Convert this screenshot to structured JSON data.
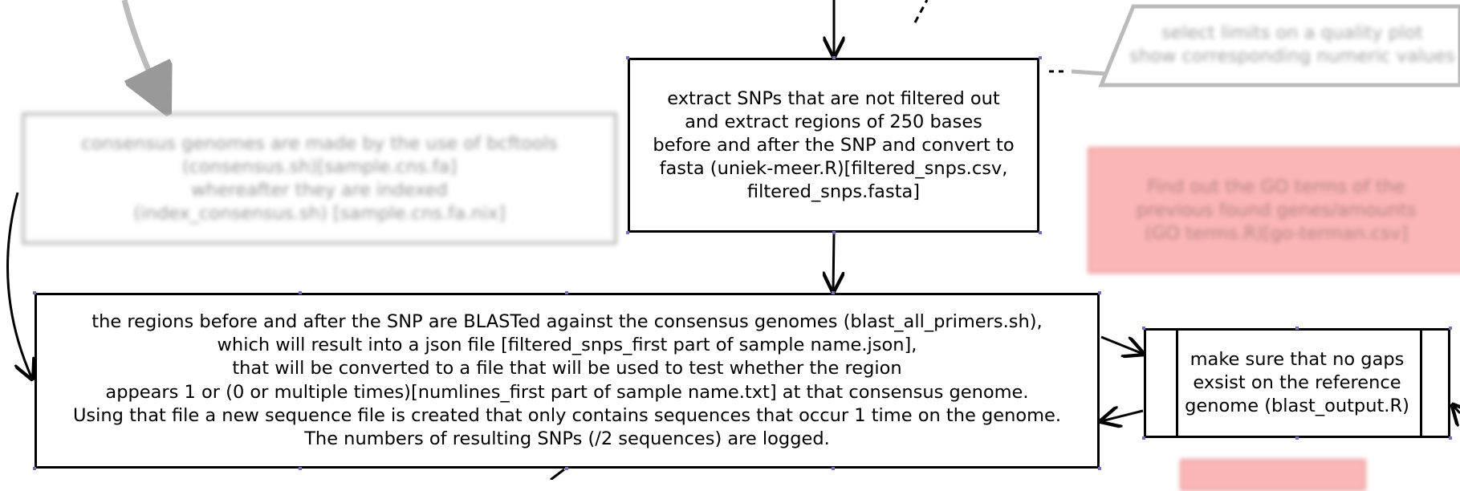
{
  "nodes": {
    "consensus": {
      "text": "consensus genomes are made by the use of bcftools\n(consensus.sh)[sample.cns.fa]\nwhereafter they are indexed\n(index_consensus.sh) [sample.cns.fa.nix]"
    },
    "extract": {
      "text": "extract SNPs that are not filtered out\nand extract regions of 250 bases\nbefore and after the SNP and convert to\nfasta (uniek-meer.R)[filtered_snps.csv,\nfiltered_snps.fasta]"
    },
    "blast": {
      "text": "the regions before and after the SNP are BLASTed against the consensus genomes (blast_all_primers.sh),\nwhich will result into a json file [filtered_snps_first part of sample name.json],\nthat will be converted to a file that will be used to test whether the region\nappears 1 or (0 or multiple times)[numlines_first part of sample name.txt] at that consensus genome.\nUsing that file a new sequence file is created that only contains sequences that occur 1 time on the genome.\nThe numbers of resulting SNPs (/2 sequences) are logged."
    },
    "gaps": {
      "text": "make sure that no gaps\nexsist on the reference\ngenome (blast_output.R)"
    },
    "goterms": {
      "text": "Find out the GO terms of the\nprevious found genes/amounts\n(GO terms.R)[go-terman.csv]"
    },
    "quality": {
      "text": "select limits on a quality plot\nshow corresponding numeric values"
    }
  },
  "colors": {
    "highlight_fill": "#f77b7b",
    "edge": "#000000",
    "blurred_edge": "#bbbbbb",
    "port": "#7b6cb5"
  }
}
